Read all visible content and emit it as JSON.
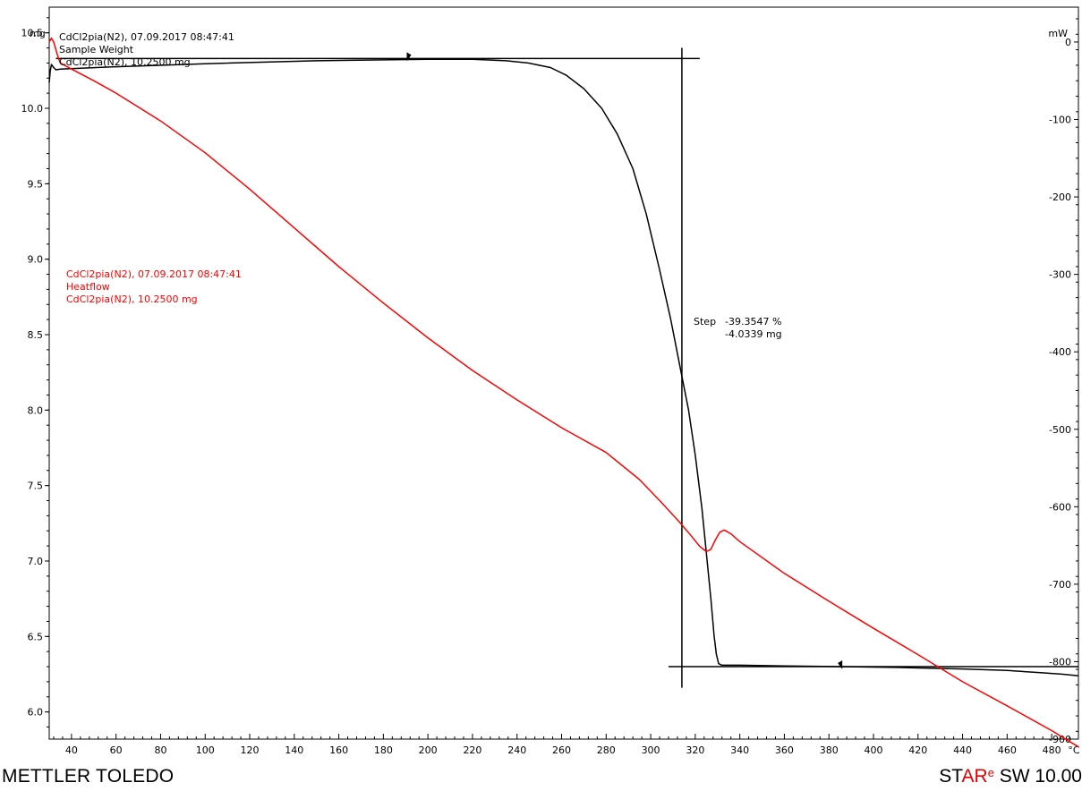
{
  "chart_data": {
    "type": "line",
    "x": {
      "unit_label": "°C",
      "range": [
        30,
        492
      ],
      "ticks": [
        40,
        60,
        80,
        100,
        120,
        140,
        160,
        180,
        200,
        220,
        240,
        260,
        280,
        300,
        320,
        340,
        360,
        380,
        400,
        420,
        440,
        460,
        480
      ]
    },
    "y_left": {
      "unit_label": "mg",
      "range": [
        5.82,
        10.67
      ],
      "ticks": [
        "6.0",
        "6.5",
        "7.0",
        "7.5",
        "8.0",
        "8.5",
        "9.0",
        "9.5",
        "10.0",
        "10.5"
      ]
    },
    "y_right": {
      "unit_label": "mW",
      "range": [
        -900,
        45
      ],
      "ticks": [
        "0",
        "-100",
        "-200",
        "-300",
        "-400",
        "-500",
        "-600",
        "-700",
        "-800",
        "-900"
      ]
    },
    "series": [
      {
        "legend": [
          "CdCl2pia(N2), 07.09.2017 08:47:41",
          "Sample Weight",
          "CdCl2pia(N2), 10.2500 mg"
        ],
        "axis": "left",
        "color": "#000000",
        "points": [
          [
            30,
            10.17
          ],
          [
            30.5,
            10.25
          ],
          [
            31,
            10.29
          ],
          [
            32,
            10.27
          ],
          [
            33,
            10.255
          ],
          [
            35,
            10.26
          ],
          [
            60,
            10.275
          ],
          [
            100,
            10.295
          ],
          [
            150,
            10.315
          ],
          [
            200,
            10.325
          ],
          [
            220,
            10.325
          ],
          [
            235,
            10.315
          ],
          [
            245,
            10.3
          ],
          [
            255,
            10.27
          ],
          [
            262,
            10.22
          ],
          [
            270,
            10.13
          ],
          [
            278,
            10.0
          ],
          [
            285,
            9.83
          ],
          [
            292,
            9.6
          ],
          [
            298,
            9.3
          ],
          [
            304,
            8.93
          ],
          [
            309,
            8.6
          ],
          [
            313,
            8.3
          ],
          [
            317,
            8.0
          ],
          [
            320,
            7.7
          ],
          [
            323,
            7.35
          ],
          [
            325,
            7.05
          ],
          [
            327,
            6.75
          ],
          [
            328.5,
            6.5
          ],
          [
            329.5,
            6.38
          ],
          [
            330.5,
            6.32
          ],
          [
            332,
            6.31
          ],
          [
            340,
            6.31
          ],
          [
            360,
            6.305
          ],
          [
            385,
            6.3
          ],
          [
            410,
            6.295
          ],
          [
            440,
            6.285
          ],
          [
            460,
            6.275
          ],
          [
            475,
            6.26
          ],
          [
            485,
            6.25
          ],
          [
            492,
            6.24
          ]
        ]
      },
      {
        "legend": [
          "CdCl2pia(N2), 07.09.2017 08:47:41",
          "Heatflow",
          "CdCl2pia(N2), 10.2500 mg"
        ],
        "axis": "right",
        "color": "#ff0000",
        "points": [
          [
            30,
            0
          ],
          [
            31,
            5
          ],
          [
            32,
            0
          ],
          [
            33,
            -10
          ],
          [
            34,
            -20
          ],
          [
            35,
            -27
          ],
          [
            40,
            -35
          ],
          [
            50,
            -50
          ],
          [
            60,
            -66
          ],
          [
            80,
            -102
          ],
          [
            100,
            -143
          ],
          [
            120,
            -190
          ],
          [
            140,
            -240
          ],
          [
            160,
            -290
          ],
          [
            180,
            -337
          ],
          [
            200,
            -382
          ],
          [
            220,
            -424
          ],
          [
            240,
            -462
          ],
          [
            260,
            -498
          ],
          [
            280,
            -530
          ],
          [
            295,
            -565
          ],
          [
            305,
            -595
          ],
          [
            313,
            -620
          ],
          [
            318,
            -637
          ],
          [
            322,
            -651
          ],
          [
            325,
            -658
          ],
          [
            327,
            -655
          ],
          [
            329,
            -643
          ],
          [
            331,
            -633
          ],
          [
            333,
            -630
          ],
          [
            336,
            -635
          ],
          [
            340,
            -645
          ],
          [
            360,
            -686
          ],
          [
            380,
            -722
          ],
          [
            400,
            -757
          ],
          [
            420,
            -791
          ],
          [
            440,
            -826
          ],
          [
            460,
            -857
          ],
          [
            480,
            -889
          ],
          [
            492,
            -910
          ]
        ]
      }
    ],
    "annotations": {
      "step_label": "Step",
      "step_percent": "-39.3547 %",
      "step_mg": "-4.0339 mg",
      "step_line_x": 314,
      "upper_baseline": {
        "x": [
          33,
          322
        ],
        "y": 10.33
      },
      "lower_baseline": {
        "x": [
          308,
          492
        ],
        "y": 6.3
      }
    }
  },
  "footer": {
    "brand": "METTLER TOLEDO",
    "software_pre": "ST",
    "software_mid": "AR",
    "software_sup": "e",
    "software_post": " SW 10.00"
  }
}
